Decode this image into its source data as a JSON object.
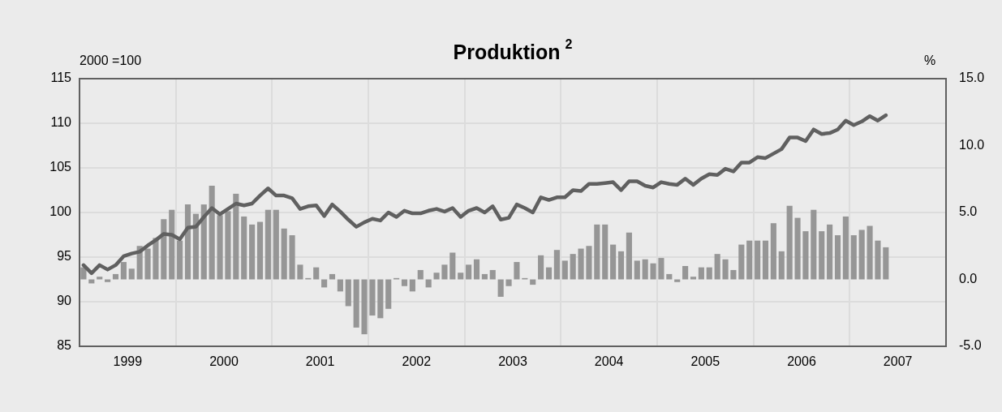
{
  "chart_data": {
    "type": "bar",
    "title": "Produktion $^{2}$",
    "ylabel": "2000 =100",
    "y2label": "%",
    "x": [
      "1999-01-16",
      "1999-02-16",
      "1999-03-16",
      "1999-04-16",
      "1999-05-16",
      "1999-06-16",
      "1999-07-16",
      "1999-08-16",
      "1999-09-16",
      "1999-10-16",
      "1999-11-16",
      "1999-12-16",
      "2000-01-16",
      "2000-02-16",
      "2000-03-16",
      "2000-04-16",
      "2000-05-16",
      "2000-06-16",
      "2000-07-16",
      "2000-08-16",
      "2000-09-16",
      "2000-10-16",
      "2000-11-16",
      "2000-12-16",
      "2001-01-16",
      "2001-02-16",
      "2001-03-16",
      "2001-04-16",
      "2001-05-16",
      "2001-06-16",
      "2001-07-16",
      "2001-08-16",
      "2001-09-16",
      "2001-10-16",
      "2001-11-16",
      "2001-12-16",
      "2002-01-16",
      "2002-02-16",
      "2002-03-16",
      "2002-04-16",
      "2002-05-16",
      "2002-06-16",
      "2002-07-16",
      "2002-08-16",
      "2002-09-16",
      "2002-10-16",
      "2002-11-16",
      "2002-12-16",
      "2003-01-16",
      "2003-02-16",
      "2003-03-16",
      "2003-04-16",
      "2003-05-16",
      "2003-06-16",
      "2003-07-16",
      "2003-08-16",
      "2003-09-16",
      "2003-10-16",
      "2003-11-16",
      "2003-12-16",
      "2004-01-16",
      "2004-02-16",
      "2004-03-16",
      "2004-04-16",
      "2004-05-16",
      "2004-06-16",
      "2004-07-16",
      "2004-08-16",
      "2004-09-16",
      "2004-10-16",
      "2004-11-16",
      "2004-12-16",
      "2005-01-16",
      "2005-02-16",
      "2005-03-16",
      "2005-04-16",
      "2005-05-16",
      "2005-06-16",
      "2005-07-16",
      "2005-08-16",
      "2005-09-16",
      "2005-10-16",
      "2005-11-16",
      "2005-12-16",
      "2006-01-16",
      "2006-02-16",
      "2006-03-16",
      "2006-04-16",
      "2006-05-16",
      "2006-06-16",
      "2006-07-16",
      "2006-08-16",
      "2006-09-16",
      "2006-10-16",
      "2006-11-16",
      "2006-12-16",
      "2007-01-16",
      "2007-02-16",
      "2007-03-16",
      "2007-04-16",
      "2007-05-16"
    ],
    "series": [
      {
        "axis": "y2",
        "color": "#969696",
        "values": [
          0.9,
          -0.3,
          0.2,
          -0.2,
          0.4,
          1.3,
          0.8,
          2.5,
          2.3,
          3.1,
          4.5,
          5.2,
          2.9,
          5.6,
          4.9,
          5.6,
          7.0,
          4.8,
          5.1,
          6.4,
          4.7,
          4.1,
          4.3,
          5.2,
          5.2,
          3.8,
          3.3,
          1.1,
          0.1,
          0.9,
          -0.6,
          0.4,
          -0.9,
          -2.0,
          -3.6,
          -4.1,
          -2.7,
          -2.9,
          -2.2,
          0.1,
          -0.5,
          -0.9,
          0.7,
          -0.6,
          0.5,
          1.1,
          2.0,
          0.5,
          1.1,
          1.5,
          0.4,
          0.7,
          -1.3,
          -0.5,
          1.3,
          0.1,
          -0.4,
          1.8,
          0.9,
          2.2,
          1.4,
          1.9,
          2.3,
          2.5,
          4.1,
          4.1,
          2.6,
          2.1,
          3.5,
          1.4,
          1.5,
          1.2,
          1.6,
          0.4,
          -0.2,
          1.0,
          0.2,
          0.9,
          0.9,
          1.9,
          1.5,
          0.7,
          2.6,
          2.9,
          2.9,
          2.9,
          4.2,
          2.1,
          5.5,
          4.6,
          3.6,
          5.2,
          3.6,
          4.1,
          3.3,
          4.7,
          3.3,
          3.7,
          4.0,
          2.9,
          2.4
        ]
      },
      {
        "type": "line",
        "axis": "y",
        "color": "#606060",
        "values": [
          94.1,
          93.2,
          94.1,
          93.6,
          94.1,
          95.1,
          95.4,
          95.6,
          96.3,
          96.9,
          97.6,
          97.5,
          97.0,
          98.3,
          98.4,
          99.5,
          100.5,
          99.8,
          100.4,
          101.0,
          100.8,
          101.0,
          101.9,
          102.7,
          101.9,
          101.9,
          101.6,
          100.4,
          100.7,
          100.8,
          99.6,
          100.9,
          100.1,
          99.2,
          98.4,
          98.9,
          99.3,
          99.1,
          100.0,
          99.5,
          100.2,
          99.9,
          99.9,
          100.2,
          100.4,
          100.1,
          100.5,
          99.5,
          100.2,
          100.5,
          100.0,
          100.7,
          99.2,
          99.4,
          100.9,
          100.5,
          100.0,
          101.7,
          101.4,
          101.7,
          101.7,
          102.5,
          102.4,
          103.2,
          103.2,
          103.3,
          103.4,
          102.5,
          103.5,
          103.5,
          103.0,
          102.8,
          103.4,
          103.2,
          103.1,
          103.8,
          103.1,
          103.8,
          104.3,
          104.2,
          104.9,
          104.6,
          105.6,
          105.6,
          106.2,
          106.1,
          106.6,
          107.1,
          108.4,
          108.4,
          108.0,
          109.3,
          108.8,
          108.9,
          109.3,
          110.3,
          109.8,
          110.2,
          110.8,
          110.3,
          110.9
        ]
      }
    ],
    "xlim": [
      "1999-01-01",
      "2008-01-01"
    ],
    "xticks": [
      {
        "value": "1999-07-01",
        "label": "1999"
      },
      {
        "value": "2000-01-01",
        "label": null
      },
      {
        "value": "2000-07-01",
        "label": "2000"
      },
      {
        "value": "2001-01-01",
        "label": null
      },
      {
        "value": "2001-07-01",
        "label": "2001"
      },
      {
        "value": "2002-01-01",
        "label": null
      },
      {
        "value": "2002-07-01",
        "label": "2002"
      },
      {
        "value": "2003-01-01",
        "label": null
      },
      {
        "value": "2003-07-01",
        "label": "2003"
      },
      {
        "value": "2004-01-01",
        "label": null
      },
      {
        "value": "2004-07-01",
        "label": "2004"
      },
      {
        "value": "2005-01-01",
        "label": null
      },
      {
        "value": "2005-07-01",
        "label": "2005"
      },
      {
        "value": "2006-01-01",
        "label": null
      },
      {
        "value": "2006-07-01",
        "label": "2006"
      },
      {
        "value": "2007-01-01",
        "label": null
      },
      {
        "value": "2007-07-01",
        "label": "2007"
      }
    ],
    "ylim": [
      85,
      115
    ],
    "yticks": [
      85,
      90,
      95,
      100,
      105,
      110,
      115
    ],
    "y2lim": [
      -5,
      15
    ],
    "y2ticks": [
      {
        "value": -5,
        "label": "-5.0"
      },
      {
        "value": 0,
        "label": "0.0"
      },
      {
        "value": 5,
        "label": "5.0"
      },
      {
        "value": 10,
        "label": "10.0"
      },
      {
        "value": 15,
        "label": "15.0"
      }
    ],
    "grid": true,
    "legend": false
  }
}
